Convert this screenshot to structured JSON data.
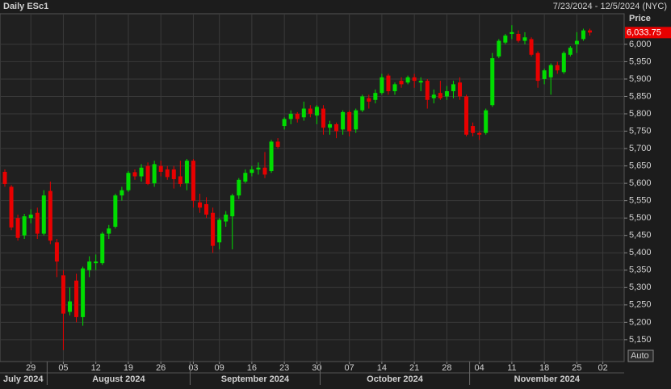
{
  "chart_data": {
    "type": "candlestick",
    "title": "Daily ESc1",
    "range_label": "7/23/2024 - 12/5/2024 (NYC)",
    "y_axis_label": "Price",
    "scale_button": "Auto",
    "last_price": {
      "value": 6033.75,
      "label": "6,033.75"
    },
    "up_color": "#00dd00",
    "down_color": "#e80000",
    "grid": true,
    "open": [
      5633,
      5590,
      5500,
      5450,
      5500,
      5515,
      5455,
      5578,
      5430,
      5335,
      5230,
      5320,
      5215,
      5350,
      5370,
      5370,
      5455,
      5475,
      5565,
      5580,
      5632,
      5620,
      5650,
      5600,
      5650,
      5640,
      5640,
      5620,
      5600,
      5665,
      5545,
      5540,
      5515,
      5430,
      5490,
      5505,
      5565,
      5605,
      5630,
      5640,
      5645,
      5635,
      5720,
      5765,
      5785,
      5800,
      5790,
      5815,
      5795,
      5815,
      5760,
      5770,
      5755,
      5805,
      5755,
      5810,
      5845,
      5840,
      5860,
      5910,
      5865,
      5895,
      5890,
      5905,
      5890,
      5895,
      5845,
      5860,
      5850,
      5865,
      5890,
      5850,
      5765,
      5745,
      5745,
      5825,
      5965,
      6005,
      6030,
      6030,
      6010,
      6015,
      5975,
      5900,
      5905,
      5940,
      5920,
      5970,
      6000,
      6015,
      6040
    ],
    "high": [
      5640,
      5595,
      5510,
      5512,
      5525,
      5530,
      5580,
      5605,
      5440,
      5350,
      5300,
      5340,
      5360,
      5390,
      5395,
      5460,
      5480,
      5570,
      5590,
      5635,
      5640,
      5655,
      5660,
      5665,
      5665,
      5650,
      5650,
      5665,
      5670,
      5670,
      5570,
      5560,
      5530,
      5500,
      5520,
      5570,
      5615,
      5640,
      5650,
      5660,
      5690,
      5725,
      5730,
      5790,
      5810,
      5805,
      5835,
      5825,
      5825,
      5825,
      5780,
      5775,
      5810,
      5810,
      5815,
      5855,
      5855,
      5870,
      5915,
      5915,
      5890,
      5905,
      5910,
      5915,
      5905,
      5900,
      5870,
      5895,
      5880,
      5895,
      5905,
      5855,
      5775,
      5750,
      5815,
      5975,
      6015,
      6030,
      6055,
      6040,
      6035,
      6020,
      5980,
      5930,
      5945,
      5950,
      5980,
      5995,
      6035,
      6045,
      6045
    ],
    "low": [
      5590,
      5465,
      5435,
      5440,
      5485,
      5440,
      5450,
      5425,
      5330,
      5120,
      5220,
      5200,
      5190,
      5330,
      5350,
      5365,
      5440,
      5470,
      5550,
      5575,
      5610,
      5605,
      5595,
      5590,
      5620,
      5610,
      5585,
      5590,
      5580,
      5530,
      5515,
      5500,
      5400,
      5410,
      5475,
      5410,
      5555,
      5600,
      5620,
      5625,
      5615,
      5630,
      5700,
      5755,
      5770,
      5775,
      5780,
      5790,
      5770,
      5740,
      5740,
      5730,
      5740,
      5735,
      5745,
      5805,
      5815,
      5830,
      5855,
      5855,
      5855,
      5875,
      5885,
      5875,
      5865,
      5815,
      5830,
      5840,
      5840,
      5845,
      5840,
      5735,
      5735,
      5725,
      5740,
      5820,
      5960,
      6000,
      6015,
      6005,
      6000,
      5965,
      5875,
      5885,
      5855,
      5915,
      5915,
      5965,
      5975,
      6010,
      6025
    ],
    "close": [
      5598,
      5473,
      5443,
      5505,
      5510,
      5455,
      5565,
      5435,
      5375,
      5225,
      5260,
      5215,
      5355,
      5375,
      5375,
      5455,
      5470,
      5565,
      5580,
      5630,
      5620,
      5645,
      5598,
      5655,
      5633,
      5618,
      5612,
      5598,
      5665,
      5550,
      5530,
      5510,
      5420,
      5495,
      5510,
      5565,
      5610,
      5630,
      5640,
      5645,
      5625,
      5720,
      5705,
      5785,
      5800,
      5785,
      5815,
      5800,
      5820,
      5760,
      5770,
      5750,
      5805,
      5750,
      5810,
      5850,
      5835,
      5860,
      5905,
      5865,
      5885,
      5885,
      5905,
      5895,
      5895,
      5840,
      5855,
      5845,
      5865,
      5885,
      5850,
      5740,
      5745,
      5740,
      5810,
      5960,
      6010,
      6025,
      6035,
      6010,
      6020,
      5970,
      5895,
      5925,
      5940,
      5925,
      5975,
      5990,
      6010,
      6040,
      6033.75
    ],
    "ylim": [
      5087,
      6088
    ],
    "yticks": [
      {
        "value": 5150,
        "label": "5,150"
      },
      {
        "value": 5200,
        "label": "5,200"
      },
      {
        "value": 5250,
        "label": "5,250"
      },
      {
        "value": 5300,
        "label": "5,300"
      },
      {
        "value": 5350,
        "label": "5,350"
      },
      {
        "value": 5400,
        "label": "5,400"
      },
      {
        "value": 5450,
        "label": "5,450"
      },
      {
        "value": 5500,
        "label": "5,500"
      },
      {
        "value": 5550,
        "label": "5,550"
      },
      {
        "value": 5600,
        "label": "5,600"
      },
      {
        "value": 5650,
        "label": "5,650"
      },
      {
        "value": 5700,
        "label": "5,700"
      },
      {
        "value": 5750,
        "label": "5,750"
      },
      {
        "value": 5800,
        "label": "5,800"
      },
      {
        "value": 5850,
        "label": "5,850"
      },
      {
        "value": 5900,
        "label": "5,900"
      },
      {
        "value": 5950,
        "label": "5,950"
      },
      {
        "value": 6000,
        "label": "6,000"
      }
    ],
    "xticks": [
      {
        "value": 4,
        "label": "29"
      },
      {
        "value": 9,
        "label": "05"
      },
      {
        "value": 14,
        "label": "12"
      },
      {
        "value": 19,
        "label": "19"
      },
      {
        "value": 24,
        "label": "26"
      },
      {
        "value": 29,
        "label": "03"
      },
      {
        "value": 33,
        "label": "09"
      },
      {
        "value": 38,
        "label": "16"
      },
      {
        "value": 43,
        "label": "23"
      },
      {
        "value": 48,
        "label": "30"
      },
      {
        "value": 53,
        "label": "07"
      },
      {
        "value": 58,
        "label": "14"
      },
      {
        "value": 63,
        "label": "21"
      },
      {
        "value": 68,
        "label": "28"
      },
      {
        "value": 73,
        "label": "04"
      },
      {
        "value": 78,
        "label": "11"
      },
      {
        "value": 83,
        "label": "18"
      },
      {
        "value": 88,
        "label": "25"
      },
      {
        "value": 92,
        "label": "02"
      }
    ],
    "months": [
      {
        "value": 0,
        "label": "July 2024"
      },
      {
        "value": 7,
        "label": "August 2024"
      },
      {
        "value": 29,
        "label": "September 2024"
      },
      {
        "value": 49,
        "label": "October 2024"
      },
      {
        "value": 72,
        "label": "November 2024"
      }
    ]
  }
}
